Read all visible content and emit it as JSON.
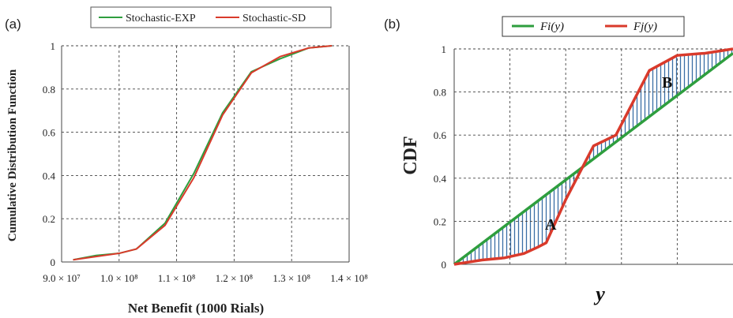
{
  "chart_data": [
    {
      "panel": "(a)",
      "type": "line",
      "xlabel": "Net Benefit (1000 Rials)",
      "ylabel": "Cumulative Distribution Function",
      "xlim": [
        90000000,
        140000000
      ],
      "ylim": [
        0,
        1
      ],
      "x_ticks": [
        90000000,
        100000000,
        110000000,
        120000000,
        130000000,
        140000000
      ],
      "x_tick_labels": [
        "9.0 × 10⁷",
        "1.0 × 10⁸",
        "1.1 × 10⁸",
        "1.2 × 10⁸",
        "1.3 × 10⁸",
        "1.4 × 10⁸"
      ],
      "y_ticks": [
        0,
        0.2,
        0.4,
        0.6,
        0.8,
        1
      ],
      "y_tick_labels": [
        "0",
        "0.2",
        "0.4",
        "0.6",
        "0.8",
        "1"
      ],
      "grid": true,
      "legend_position": "top",
      "series": [
        {
          "name": "Stochastic-EXP",
          "color": "#2e9e3e",
          "x": [
            92000000,
            96000000,
            100000000,
            103000000,
            108000000,
            113000000,
            118000000,
            123000000,
            128000000,
            133000000,
            137000000
          ],
          "y": [
            0.01,
            0.03,
            0.04,
            0.06,
            0.18,
            0.41,
            0.69,
            0.88,
            0.94,
            0.99,
            1.0
          ]
        },
        {
          "name": "Stochastic-SD",
          "color": "#d93a2b",
          "x": [
            92000000,
            96000000,
            100000000,
            103000000,
            108000000,
            113000000,
            118000000,
            123000000,
            128000000,
            133000000,
            137000000
          ],
          "y": [
            0.01,
            0.025,
            0.04,
            0.06,
            0.17,
            0.39,
            0.68,
            0.875,
            0.95,
            0.99,
            1.0
          ]
        }
      ]
    },
    {
      "panel": "(b)",
      "type": "line",
      "xlabel": "y",
      "ylabel": "CDF",
      "xlim": [
        0,
        1
      ],
      "ylim": [
        0,
        1
      ],
      "y_ticks": [
        0,
        0.2,
        0.4,
        0.6,
        0.8,
        1
      ],
      "y_tick_labels": [
        "0",
        "0.2",
        "0.4",
        "0.6",
        "0.8",
        "1"
      ],
      "x_gridlines": [
        0.2,
        0.4,
        0.6,
        0.8
      ],
      "grid": true,
      "legend_position": "top",
      "series": [
        {
          "name": "Fi(y)",
          "color": "#2e9e3e",
          "x": [
            0,
            1
          ],
          "y": [
            0,
            0.98
          ]
        },
        {
          "name": "Fj(y)",
          "color": "#d93a2b",
          "x": [
            0,
            0.05,
            0.1,
            0.18,
            0.25,
            0.3,
            0.33,
            0.4,
            0.5,
            0.58,
            0.62,
            0.7,
            0.8,
            0.9,
            1.0
          ],
          "y": [
            0,
            0.01,
            0.02,
            0.03,
            0.05,
            0.08,
            0.1,
            0.3,
            0.55,
            0.6,
            0.7,
            0.9,
            0.97,
            0.98,
            1.0
          ]
        }
      ],
      "shaded_regions": [
        "A",
        "B"
      ],
      "shade_color": "#3a6ea5"
    }
  ]
}
